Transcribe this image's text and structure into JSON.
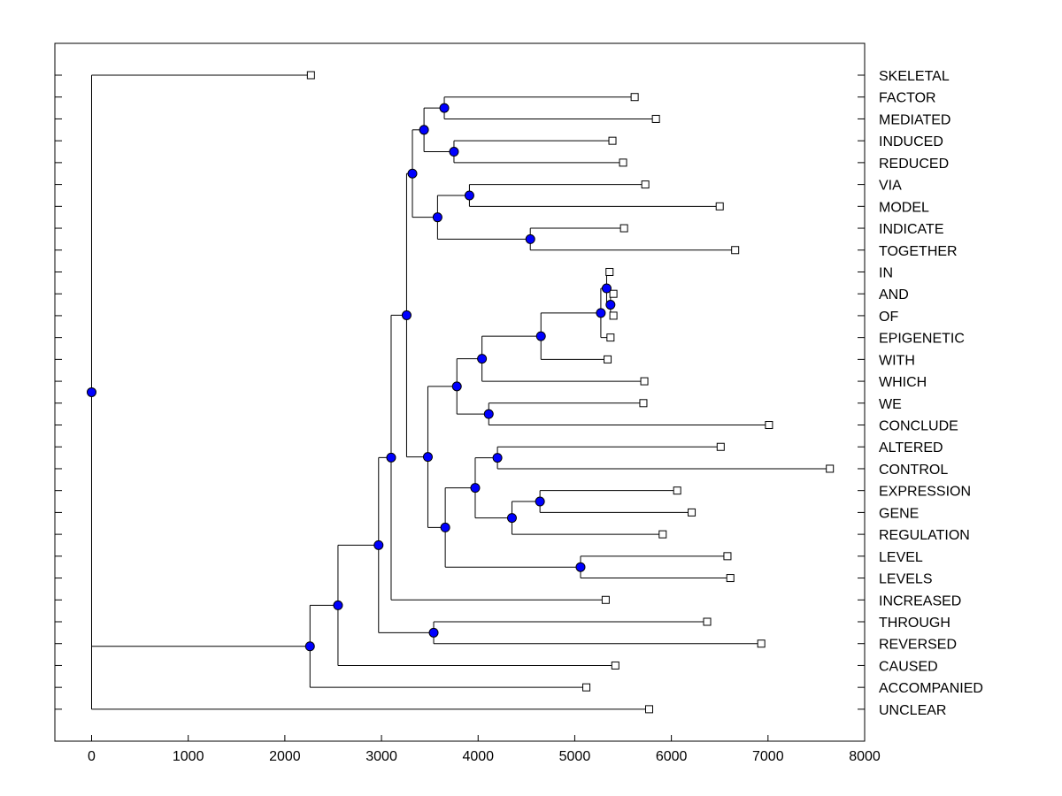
{
  "chart_data": {
    "type": "dendrogram",
    "orientation": "horizontal",
    "title": "",
    "xlabel": "",
    "ylabel": "",
    "xlim": [
      -380,
      8000
    ],
    "xticks": [
      0,
      1000,
      2000,
      3000,
      4000,
      5000,
      6000,
      7000,
      8000
    ],
    "grid": false,
    "internal_node_color": "#0000ff",
    "leaves": [
      {
        "label": "SKELETAL",
        "height": 2270
      },
      {
        "label": "FACTOR",
        "height": 5620
      },
      {
        "label": "MEDIATED",
        "height": 5840
      },
      {
        "label": "INDUCED",
        "height": 5390
      },
      {
        "label": "REDUCED",
        "height": 5500
      },
      {
        "label": "VIA",
        "height": 5730
      },
      {
        "label": "MODEL",
        "height": 6500
      },
      {
        "label": "INDICATE",
        "height": 5510
      },
      {
        "label": "TOGETHER",
        "height": 6660
      },
      {
        "label": "IN",
        "height": 5360
      },
      {
        "label": "AND",
        "height": 5400
      },
      {
        "label": "OF",
        "height": 5400
      },
      {
        "label": "EPIGENETIC",
        "height": 5370
      },
      {
        "label": "WITH",
        "height": 5340
      },
      {
        "label": "WHICH",
        "height": 5720
      },
      {
        "label": "WE",
        "height": 5710
      },
      {
        "label": "CONCLUDE",
        "height": 7010
      },
      {
        "label": "ALTERED",
        "height": 6510
      },
      {
        "label": "CONTROL",
        "height": 7640
      },
      {
        "label": "EXPRESSION",
        "height": 6060
      },
      {
        "label": "GENE",
        "height": 6210
      },
      {
        "label": "REGULATION",
        "height": 5910
      },
      {
        "label": "LEVEL",
        "height": 6580
      },
      {
        "label": "LEVELS",
        "height": 6610
      },
      {
        "label": "INCREASED",
        "height": 5320
      },
      {
        "label": "THROUGH",
        "height": 6370
      },
      {
        "label": "REVERSED",
        "height": 6930
      },
      {
        "label": "CAUSED",
        "height": 5420
      },
      {
        "label": "ACCOMPANIED",
        "height": 5120
      },
      {
        "label": "UNCLEAR",
        "height": 5770
      }
    ],
    "tree": {
      "height": 0,
      "children": [
        {
          "leaf": "SKELETAL"
        },
        {
          "height": 2260,
          "children": [
            {
              "height": 2550,
              "children": [
                {
                  "height": 2970,
                  "children": [
                    {
                      "height": 3100,
                      "children": [
                        {
                          "height": 3260,
                          "children": [
                            {
                              "height": 3320,
                              "children": [
                                {
                                  "height": 3440,
                                  "children": [
                                    {
                                      "height": 3650,
                                      "children": [
                                        {
                                          "leaf": "FACTOR"
                                        },
                                        {
                                          "leaf": "MEDIATED"
                                        }
                                      ]
                                    },
                                    {
                                      "height": 3750,
                                      "children": [
                                        {
                                          "leaf": "INDUCED"
                                        },
                                        {
                                          "leaf": "REDUCED"
                                        }
                                      ]
                                    }
                                  ]
                                },
                                {
                                  "height": 3580,
                                  "children": [
                                    {
                                      "height": 3910,
                                      "children": [
                                        {
                                          "leaf": "VIA"
                                        },
                                        {
                                          "leaf": "MODEL"
                                        }
                                      ]
                                    },
                                    {
                                      "height": 4540,
                                      "children": [
                                        {
                                          "leaf": "INDICATE"
                                        },
                                        {
                                          "leaf": "TOGETHER"
                                        }
                                      ]
                                    }
                                  ]
                                }
                              ]
                            },
                            {
                              "height": 3480,
                              "children": [
                                {
                                  "height": 3780,
                                  "children": [
                                    {
                                      "height": 4040,
                                      "children": [
                                        {
                                          "height": 4650,
                                          "children": [
                                            {
                                              "height": 5270,
                                              "children": [
                                                {
                                                  "height": 5330,
                                                  "children": [
                                                    {
                                                      "leaf": "IN"
                                                    },
                                                    {
                                                      "height": 5370,
                                                      "children": [
                                                        {
                                                          "leaf": "AND"
                                                        },
                                                        {
                                                          "leaf": "OF"
                                                        }
                                                      ]
                                                    }
                                                  ]
                                                },
                                                {
                                                  "leaf": "EPIGENETIC"
                                                }
                                              ]
                                            },
                                            {
                                              "leaf": "WITH"
                                            }
                                          ]
                                        },
                                        {
                                          "leaf": "WHICH"
                                        }
                                      ]
                                    },
                                    {
                                      "height": 4110,
                                      "children": [
                                        {
                                          "leaf": "WE"
                                        },
                                        {
                                          "leaf": "CONCLUDE"
                                        }
                                      ]
                                    }
                                  ]
                                },
                                {
                                  "height": 3660,
                                  "children": [
                                    {
                                      "height": 3970,
                                      "children": [
                                        {
                                          "height": 4200,
                                          "children": [
                                            {
                                              "leaf": "ALTERED"
                                            },
                                            {
                                              "leaf": "CONTROL"
                                            }
                                          ]
                                        },
                                        {
                                          "height": 4350,
                                          "children": [
                                            {
                                              "height": 4640,
                                              "children": [
                                                {
                                                  "leaf": "EXPRESSION"
                                                },
                                                {
                                                  "leaf": "GENE"
                                                }
                                              ]
                                            },
                                            {
                                              "leaf": "REGULATION"
                                            }
                                          ]
                                        }
                                      ]
                                    },
                                    {
                                      "height": 5060,
                                      "children": [
                                        {
                                          "leaf": "LEVEL"
                                        },
                                        {
                                          "leaf": "LEVELS"
                                        }
                                      ]
                                    }
                                  ]
                                }
                              ]
                            }
                          ]
                        },
                        {
                          "leaf": "INCREASED"
                        }
                      ]
                    },
                    {
                      "height": 3540,
                      "children": [
                        {
                          "leaf": "THROUGH"
                        },
                        {
                          "leaf": "REVERSED"
                        }
                      ]
                    }
                  ]
                },
                {
                  "leaf": "CAUSED"
                }
              ]
            },
            {
              "leaf": "ACCOMPANIED"
            }
          ]
        },
        {
          "leaf": "UNCLEAR"
        }
      ]
    }
  }
}
